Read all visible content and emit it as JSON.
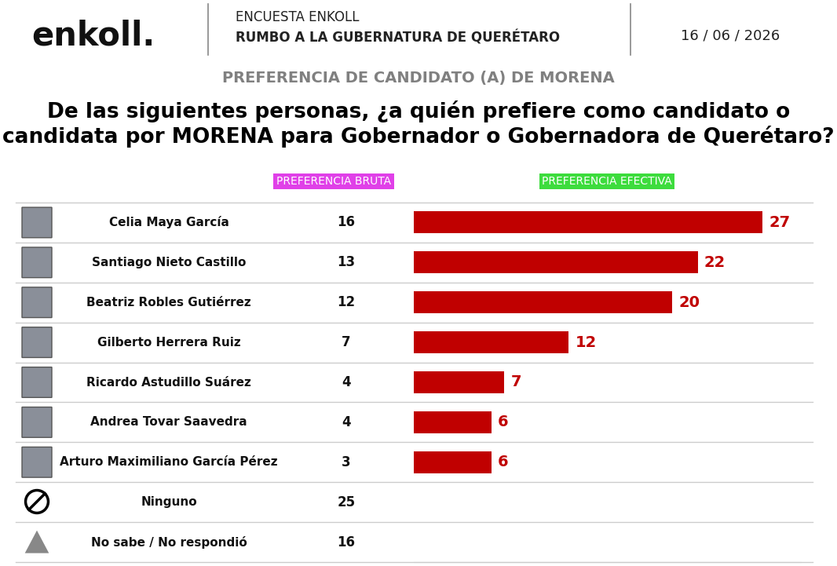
{
  "chart_data": {
    "type": "bar",
    "orientation": "horizontal",
    "logo": "enkoll.",
    "survey": "ENCUESTA ENKOLL",
    "survey_title": "RUMBO A LA GUBERNATURA DE QUERÉTARO",
    "date": "16 / 06 / 2026",
    "subtitle": "PREFERENCIA DE CANDIDATO (A) DE MORENA",
    "title": "De las siguientes personas, ¿a quién prefiere como candidato o candidata por MORENA para Gobernador o Gobernadora de Querétaro?",
    "raw_header": "PREFERENCIA BRUTA",
    "effective_header": "PREFERENCIA EFECTIVA",
    "categories": [
      "Celia Maya García",
      "Santiago Nieto Castillo",
      "Beatriz Robles Gutiérrez",
      "Gilberto Herrera Ruiz",
      "Ricardo Astudillo Suárez",
      "Andrea Tovar Saavedra",
      "Arturo Maximiliano García Pérez",
      "Ninguno",
      "No sabe / No respondió"
    ],
    "raw_values": [
      16,
      13,
      12,
      7,
      4,
      4,
      3,
      25,
      16
    ],
    "values": [
      27,
      22,
      20,
      12,
      7,
      6,
      6,
      null,
      null
    ],
    "color": "#c00000",
    "xlim": [
      0,
      30
    ],
    "data_labels": true,
    "tick_labels": false
  }
}
